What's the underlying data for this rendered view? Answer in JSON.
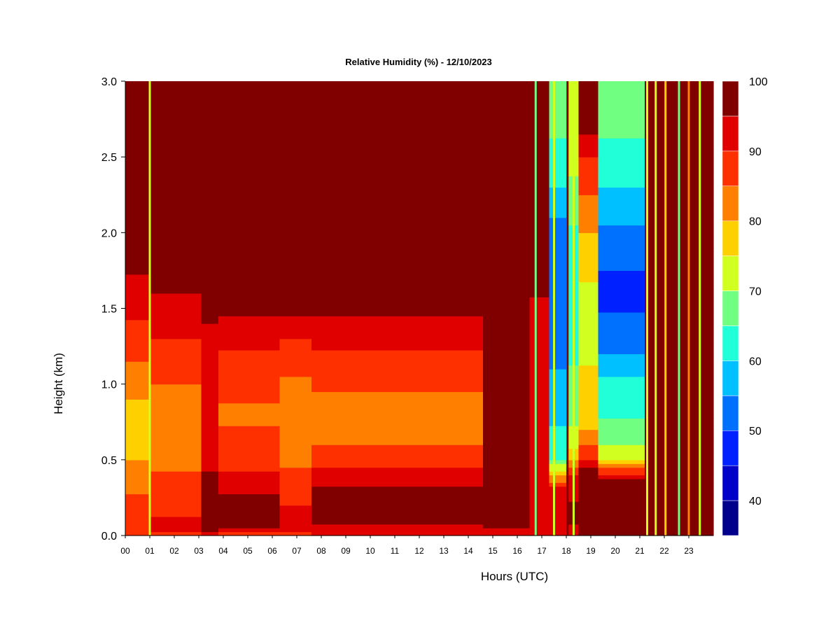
{
  "chart_data": {
    "type": "heatmap",
    "title": "Relative Humidity (%) - 12/10/2023",
    "xlabel": "Hours (UTC)",
    "ylabel": "Height (km)",
    "xlim": [
      0,
      24
    ],
    "ylim": [
      0,
      3.0
    ],
    "x_ticks": [
      "00",
      "01",
      "02",
      "03",
      "04",
      "05",
      "06",
      "07",
      "08",
      "09",
      "10",
      "11",
      "12",
      "13",
      "14",
      "15",
      "16",
      "17",
      "18",
      "19",
      "20",
      "21",
      "22",
      "23"
    ],
    "y_ticks": [
      "0.0",
      "0.5",
      "1.0",
      "1.5",
      "2.0",
      "2.5",
      "3.0"
    ],
    "colorbar": {
      "ticks": [
        "40",
        "50",
        "60",
        "70",
        "80",
        "90",
        "100"
      ],
      "range": [
        35,
        100
      ],
      "levels": [
        35,
        40,
        45,
        50,
        55,
        60,
        65,
        70,
        75,
        80,
        85,
        90,
        95,
        100
      ],
      "colors": [
        "#00008c",
        "#0000c8",
        "#0020ff",
        "#0070ff",
        "#00c0ff",
        "#20ffd8",
        "#70ff80",
        "#d0ff20",
        "#ffd000",
        "#ff8000",
        "#ff3000",
        "#e00000",
        "#800000"
      ]
    },
    "profiles": [
      {
        "hours": [
          0.0,
          1.0
        ],
        "rh": [
          [
            0.0,
            88
          ],
          [
            0.05,
            90
          ],
          [
            0.2,
            87
          ],
          [
            0.5,
            80
          ],
          [
            0.8,
            78
          ],
          [
            1.0,
            82
          ],
          [
            1.3,
            88
          ],
          [
            1.6,
            93
          ],
          [
            1.8,
            96
          ],
          [
            1.9,
            100
          ],
          [
            3.0,
            100
          ]
        ]
      },
      {
        "hours": [
          1.0,
          3.1
        ],
        "rh": [
          [
            0.0,
            85
          ],
          [
            0.05,
            92
          ],
          [
            0.2,
            88
          ],
          [
            0.5,
            84
          ],
          [
            0.8,
            84
          ],
          [
            1.0,
            85
          ],
          [
            1.3,
            90
          ],
          [
            1.6,
            95
          ],
          [
            1.75,
            100
          ],
          [
            3.0,
            100
          ]
        ]
      },
      {
        "hours": [
          3.1,
          3.8
        ],
        "rh": [
          [
            0.0,
            92
          ],
          [
            0.05,
            100
          ],
          [
            0.3,
            100
          ],
          [
            0.5,
            92
          ],
          [
            0.8,
            90
          ],
          [
            1.0,
            92
          ],
          [
            1.4,
            95
          ],
          [
            1.5,
            100
          ],
          [
            3.0,
            100
          ]
        ]
      },
      {
        "hours": [
          3.8,
          6.3
        ],
        "rh": [
          [
            0.0,
            88
          ],
          [
            0.05,
            95
          ],
          [
            0.15,
            100
          ],
          [
            0.3,
            94
          ],
          [
            0.5,
            88
          ],
          [
            0.8,
            84
          ],
          [
            1.1,
            88
          ],
          [
            1.4,
            93
          ],
          [
            1.55,
            100
          ],
          [
            3.0,
            100
          ]
        ]
      },
      {
        "hours": [
          6.3,
          7.6
        ],
        "rh": [
          [
            0.0,
            85
          ],
          [
            0.05,
            92
          ],
          [
            0.2,
            90
          ],
          [
            0.5,
            84
          ],
          [
            0.8,
            80
          ],
          [
            1.1,
            86
          ],
          [
            1.4,
            92
          ],
          [
            1.55,
            100
          ],
          [
            3.0,
            100
          ]
        ]
      },
      {
        "hours": [
          7.6,
          14.6
        ],
        "rh": [
          [
            0.0,
            90
          ],
          [
            0.05,
            93
          ],
          [
            0.12,
            100
          ],
          [
            0.25,
            100
          ],
          [
            0.35,
            93
          ],
          [
            0.5,
            88
          ],
          [
            0.7,
            82
          ],
          [
            0.9,
            84
          ],
          [
            1.1,
            88
          ],
          [
            1.4,
            93
          ],
          [
            1.55,
            100
          ],
          [
            3.0,
            100
          ]
        ]
      },
      {
        "hours": [
          14.6,
          16.5
        ],
        "rh": [
          [
            0.0,
            90
          ],
          [
            0.05,
            96
          ],
          [
            0.1,
            100
          ],
          [
            3.0,
            100
          ]
        ]
      },
      {
        "hours": [
          16.5,
          17.3
        ],
        "rh": [
          [
            0.0,
            90
          ],
          [
            0.05,
            94
          ],
          [
            0.2,
            92
          ],
          [
            0.5,
            90
          ],
          [
            1.0,
            92
          ],
          [
            1.5,
            94
          ],
          [
            2.0,
            100
          ],
          [
            3.0,
            100
          ]
        ]
      },
      {
        "hours": [
          17.3,
          18.0
        ],
        "rh": [
          [
            0.0,
            90
          ],
          [
            0.1,
            94
          ],
          [
            0.3,
            92
          ],
          [
            0.4,
            80
          ],
          [
            0.5,
            65
          ],
          [
            0.8,
            58
          ],
          [
            1.1,
            55
          ],
          [
            1.5,
            50
          ],
          [
            1.9,
            50
          ],
          [
            2.3,
            60
          ],
          [
            2.7,
            66
          ],
          [
            3.0,
            70
          ]
        ]
      },
      {
        "hours": [
          18.0,
          18.5
        ],
        "rh": [
          [
            0.0,
            90
          ],
          [
            0.1,
            96
          ],
          [
            0.35,
            94
          ],
          [
            0.45,
            84
          ],
          [
            0.6,
            72
          ],
          [
            1.0,
            66
          ],
          [
            1.5,
            62
          ],
          [
            2.0,
            64
          ],
          [
            2.5,
            72
          ],
          [
            3.0,
            75
          ]
        ]
      },
      {
        "hours": [
          18.5,
          19.3
        ],
        "rh": [
          [
            0.0,
            100
          ],
          [
            0.4,
            100
          ],
          [
            0.5,
            90
          ],
          [
            0.7,
            80
          ],
          [
            1.0,
            76
          ],
          [
            1.5,
            72
          ],
          [
            2.0,
            80
          ],
          [
            2.5,
            90
          ],
          [
            2.8,
            100
          ],
          [
            3.0,
            100
          ]
        ]
      },
      {
        "hours": [
          19.3,
          21.2
        ],
        "rh": [
          [
            0.0,
            100
          ],
          [
            0.35,
            100
          ],
          [
            0.4,
            92
          ],
          [
            0.5,
            75
          ],
          [
            0.7,
            66
          ],
          [
            1.0,
            62
          ],
          [
            1.2,
            55
          ],
          [
            1.6,
            48
          ],
          [
            1.9,
            52
          ],
          [
            2.3,
            60
          ],
          [
            2.7,
            66
          ],
          [
            3.0,
            68
          ]
        ]
      },
      {
        "hours": [
          21.2,
          24.0
        ],
        "rh": [
          [
            0.0,
            100
          ],
          [
            0.45,
            100
          ],
          [
            0.6,
            96
          ],
          [
            1.0,
            97
          ],
          [
            3.0,
            100
          ]
        ]
      }
    ],
    "streaks": [
      {
        "hour": 1.0,
        "rh": 72
      },
      {
        "hour": 16.75,
        "rh": 66
      },
      {
        "hour": 17.5,
        "rh": 70
      },
      {
        "hour": 18.05,
        "rh": 98
      },
      {
        "hour": 18.3,
        "rh": 72
      },
      {
        "hour": 21.3,
        "rh": 74
      },
      {
        "hour": 21.65,
        "rh": 72
      },
      {
        "hour": 22.05,
        "rh": 76
      },
      {
        "hour": 22.6,
        "rh": 68
      },
      {
        "hour": 23.0,
        "rh": 80
      },
      {
        "hour": 23.45,
        "rh": 72
      }
    ]
  }
}
